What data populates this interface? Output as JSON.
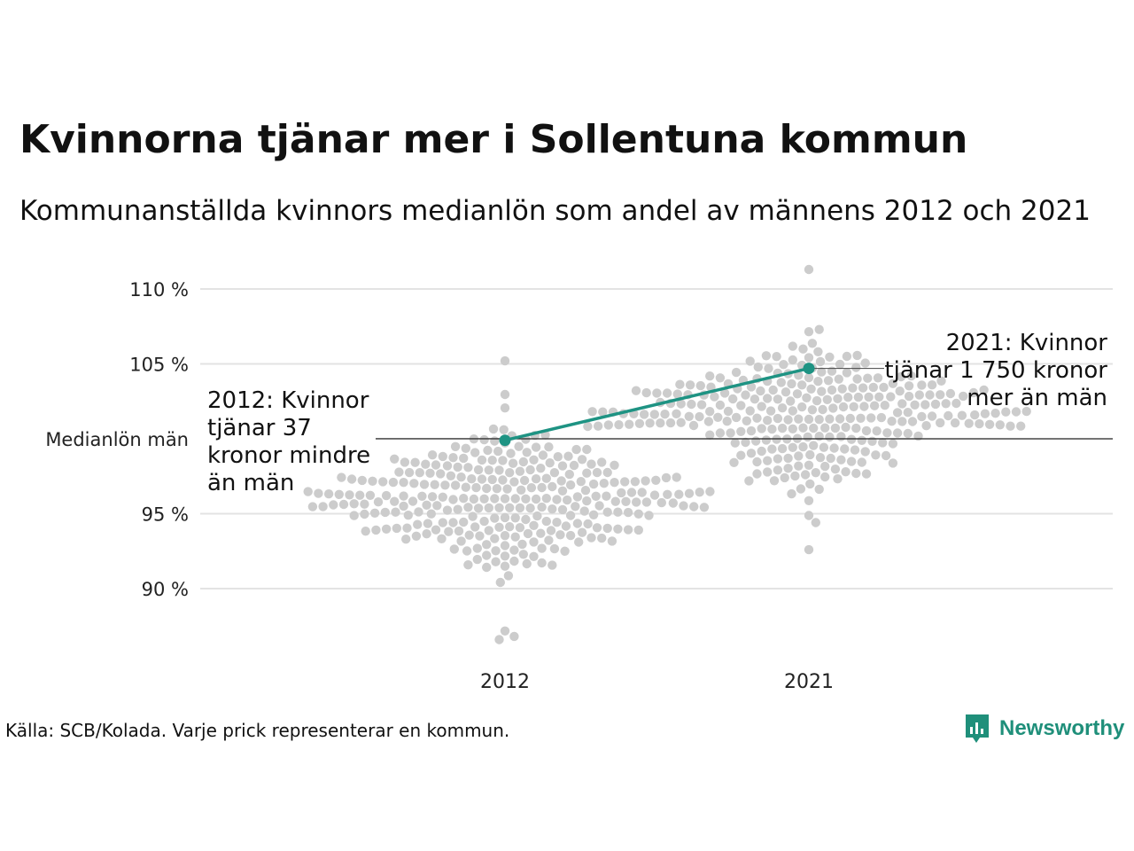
{
  "title": "Kvinnorna tjänar mer i Sollentuna kommun",
  "subtitle": "Kommunanställda kvinnors medianlön som andel av männens 2012 och 2021",
  "source": "Källa: SCB/Kolada. Varje prick representerar en kommun.",
  "brand": {
    "name": "Newsworthy",
    "icon": "newsworthy-logo-icon"
  },
  "colors": {
    "highlight": "#1e9383",
    "dots": "#cccccc",
    "grid": "#e3e3e3",
    "reference": "#222222"
  },
  "chart_data": {
    "type": "scatter",
    "subtype": "beeswarm",
    "categories": [
      "2012",
      "2021"
    ],
    "ylim": [
      86,
      111.5
    ],
    "yticks": [
      {
        "value": 90,
        "label": "90 %"
      },
      {
        "value": 95,
        "label": "95 %"
      },
      {
        "value": 105,
        "label": "105 %"
      },
      {
        "value": 110,
        "label": "110 %"
      }
    ],
    "reference": {
      "value": 100,
      "label": "Medianlön män"
    },
    "grid": true,
    "distributions": [
      {
        "category": "2012",
        "center": 96.0,
        "spread": 2.1,
        "min": 86.6,
        "max": 105.2,
        "count": 290
      },
      {
        "category": "2021",
        "center": 101.3,
        "spread": 2.4,
        "min": 92.6,
        "max": 111.3,
        "count": 290
      }
    ],
    "highlight": {
      "name": "Sollentuna",
      "values": [
        {
          "x": "2012",
          "y": 99.9
        },
        {
          "x": "2021",
          "y": 104.7
        }
      ]
    },
    "annotations": [
      {
        "x": "2012",
        "lines": [
          "2012: Kvinnor",
          "tjänar 37",
          "kronor mindre",
          "än män"
        ]
      },
      {
        "x": "2021",
        "lines": [
          "2021: Kvinnor",
          "tjänar 1 750 kronor",
          "mer än män"
        ]
      }
    ]
  }
}
